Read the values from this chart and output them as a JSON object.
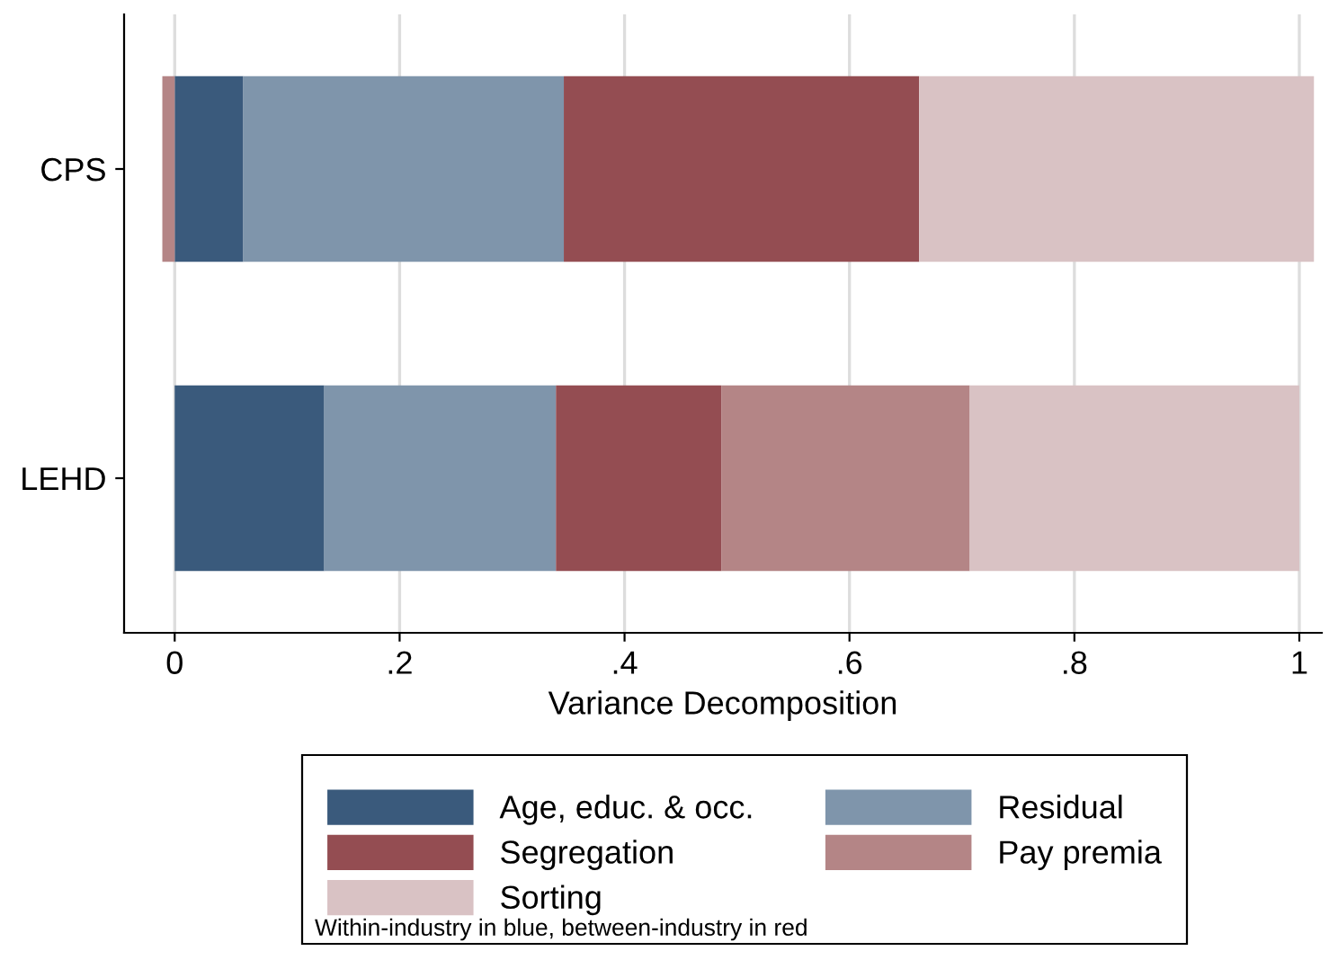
{
  "chart_data": {
    "type": "bar",
    "orientation": "horizontal",
    "stacked": true,
    "xlabel": "Variance Decomposition",
    "categories": [
      "CPS",
      "LEHD"
    ],
    "series": [
      {
        "name": "Age, educ. & occ.",
        "color": "#3a5a7c",
        "values": [
          0.061,
          0.133
        ]
      },
      {
        "name": "Residual",
        "color": "#7f95ab",
        "values": [
          0.285,
          0.206
        ]
      },
      {
        "name": "Segregation",
        "color": "#944d52",
        "values": [
          0.316,
          0.147
        ]
      },
      {
        "name": "Pay premia",
        "color": "#b48586",
        "values": [
          -0.011,
          0.221
        ]
      },
      {
        "name": "Sorting",
        "color": "#d9c2c4",
        "values": [
          0.351,
          0.293
        ]
      }
    ],
    "xlim": [
      -0.045,
      1.02
    ],
    "xticks": [
      0,
      {
        "value": 0.2,
        "label": ".2"
      },
      {
        "value": 0.4,
        "label": ".4"
      },
      {
        "value": 0.6,
        "label": ".6"
      },
      {
        "value": 0.8,
        "label": ".8"
      },
      1
    ],
    "grid": "x",
    "legend": "bottom",
    "annotations": [
      "Within-industry in blue, between-industry in red"
    ]
  }
}
